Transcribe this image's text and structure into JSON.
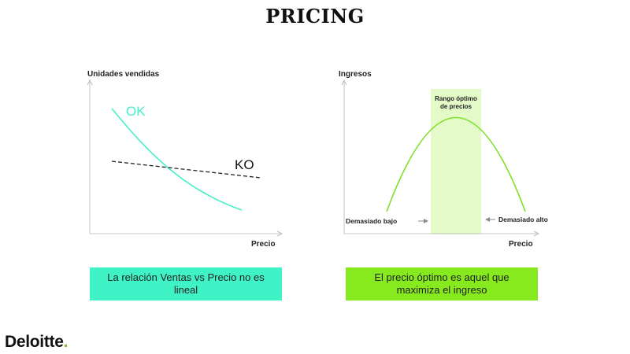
{
  "title": "PRICING",
  "colors": {
    "ok_curve": "#46f0c8",
    "revenue_curve": "#7ee02a",
    "optimal_band": "#e4fbc9",
    "caption_left_bg": "#3ff3c7",
    "caption_right_bg": "#86ea1e",
    "brand_dot": "#86bc25"
  },
  "left_chart": {
    "ylabel": "Unidades vendidas",
    "xlabel": "Precio",
    "ok_label": "OK",
    "ko_label": "KO"
  },
  "right_chart": {
    "ylabel": "Ingresos",
    "xlabel": "Precio",
    "band_label_line1": "Rango óptimo",
    "band_label_line2": "de precios",
    "low_label": "Demasiado bajo",
    "high_label": "Demasiado alto"
  },
  "captions": {
    "left": "La relación Ventas vs Precio no es lineal",
    "right": "El precio óptimo es aquel que maximiza el ingreso"
  },
  "brand": {
    "name": "Deloitte",
    "dot": "."
  }
}
